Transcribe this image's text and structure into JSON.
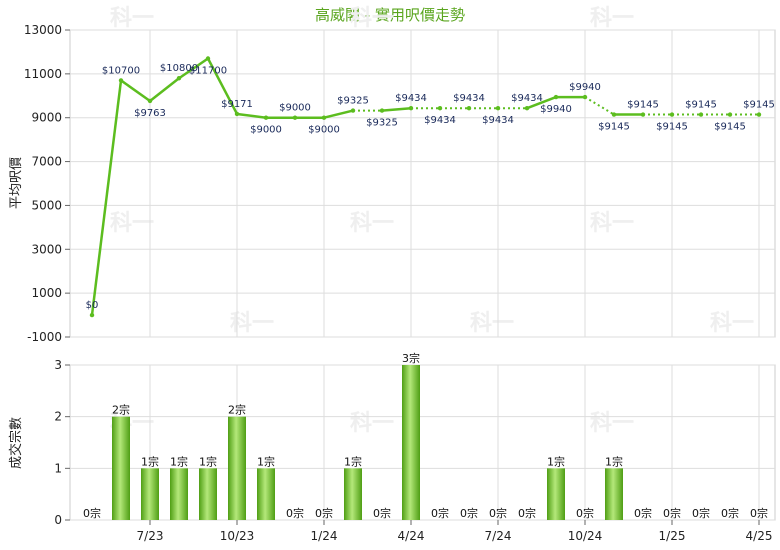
{
  "title": "高威閣 - 實用呎價走勢",
  "colors": {
    "line": "#5cbd1f",
    "bar_light": "#b4e87a",
    "bar_dark": "#4f9e14",
    "grid": "#dddddd",
    "title": "#5aa51e"
  },
  "chart_data": [
    {
      "type": "line",
      "ylabel": "平均呎價",
      "ylim": [
        -1000,
        13000
      ],
      "yticks": [
        "13000",
        "11000",
        "9000",
        "7000",
        "5000",
        "3000",
        "1000",
        "-1000"
      ],
      "x": [
        "2023-05",
        "2023-06",
        "2023-07",
        "2023-08",
        "2023-09",
        "2023-10",
        "2023-11",
        "2023-12",
        "2024-01",
        "2024-02",
        "2024-03",
        "2024-04",
        "2024-05",
        "2024-06",
        "2024-07",
        "2024-08",
        "2024-09",
        "2024-10",
        "2024-11",
        "2024-12",
        "2025-01",
        "2025-02",
        "2025-03",
        "2025-04"
      ],
      "values": [
        0,
        10700,
        9763,
        10800,
        11700,
        9171,
        9000,
        9000,
        9000,
        9325,
        9325,
        9434,
        9434,
        9434,
        9434,
        9434,
        9940,
        9940,
        9145,
        9145,
        9145,
        9145,
        9145,
        9145
      ],
      "value_labels": [
        "$0",
        "$10700",
        "$9763",
        "$10800",
        "$11700",
        "$9171",
        "$9000",
        "$9000",
        "$9000",
        "$9325",
        "$9325",
        "$9434",
        "$9434",
        "$9434",
        "$9434",
        "$9434",
        "$9940",
        "$9940",
        "$9145",
        "$9145",
        "$9145",
        "$9145",
        "$9145",
        "$9145"
      ],
      "dotted_segments_from_index": [
        9,
        11,
        12,
        13,
        14,
        17,
        19,
        20,
        21,
        22
      ],
      "grid": true
    },
    {
      "type": "bar",
      "ylabel": "成交宗數",
      "ylim": [
        0,
        3
      ],
      "yticks": [
        "3",
        "2",
        "1",
        "0"
      ],
      "xtick_labels": [
        "7/23",
        "10/23",
        "1/24",
        "4/24",
        "7/24",
        "10/24",
        "1/25",
        "4/25"
      ],
      "categories": [
        "2023-05",
        "2023-06",
        "2023-07",
        "2023-08",
        "2023-09",
        "2023-10",
        "2023-11",
        "2023-12",
        "2024-01",
        "2024-02",
        "2024-03",
        "2024-04",
        "2024-05",
        "2024-06",
        "2024-07",
        "2024-08",
        "2024-09",
        "2024-10",
        "2024-11",
        "2024-12",
        "2025-01",
        "2025-02",
        "2025-03",
        "2025-04"
      ],
      "values": [
        0,
        2,
        1,
        1,
        1,
        2,
        1,
        0,
        0,
        1,
        0,
        3,
        0,
        0,
        0,
        0,
        1,
        0,
        1,
        0,
        0,
        0,
        0,
        0
      ],
      "value_labels": [
        "0宗",
        "2宗",
        "1宗",
        "1宗",
        "1宗",
        "2宗",
        "1宗",
        "0宗",
        "0宗",
        "1宗",
        "0宗",
        "3宗",
        "0宗",
        "0宗",
        "0宗",
        "0宗",
        "1宗",
        "0宗",
        "1宗",
        "0宗",
        "0宗",
        "0宗",
        "0宗",
        "0宗"
      ],
      "grid": true
    }
  ],
  "watermark": "科一"
}
